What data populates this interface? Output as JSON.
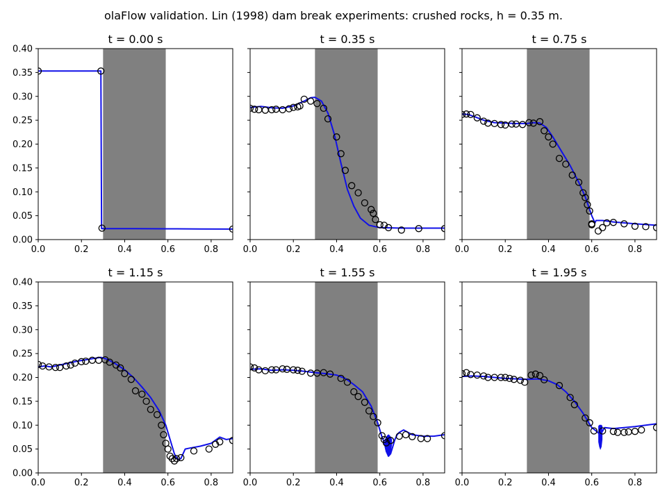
{
  "figure": {
    "suptitle": "olaFlow validation. Lin (1998) dam break experiments: crushed rocks, h = 0.35 m."
  },
  "colors": {
    "model_line": "#1010e8",
    "experiment_marker": "#000000",
    "porous_region": "#808080"
  },
  "chart_data": [
    {
      "type": "line",
      "title": "t = 0.00 s",
      "xlim": [
        0,
        0.9
      ],
      "ylim": [
        0,
        0.4
      ],
      "xticks": [
        "0.0",
        "0.2",
        "0.4",
        "0.6",
        "0.8"
      ],
      "yticks": [
        "0.00",
        "0.05",
        "0.10",
        "0.15",
        "0.20",
        "0.25",
        "0.30",
        "0.35",
        "0.40"
      ],
      "show_yticklabels": true,
      "shaded_region": [
        0.3,
        0.59
      ],
      "series": [
        {
          "kind": "line",
          "role": "model",
          "x": [
            0.0,
            0.29,
            0.293,
            0.3,
            0.45,
            0.6,
            0.75,
            0.9
          ],
          "y": [
            0.353,
            0.353,
            0.023,
            0.023,
            0.0228,
            0.0225,
            0.0222,
            0.022
          ]
        },
        {
          "kind": "scatter",
          "role": "experiment",
          "x": [
            0.0,
            0.29,
            0.295,
            0.9
          ],
          "y": [
            0.353,
            0.353,
            0.024,
            0.022
          ]
        }
      ]
    },
    {
      "type": "line",
      "title": "t = 0.35 s",
      "xlim": [
        0,
        0.9
      ],
      "ylim": [
        0,
        0.4
      ],
      "xticks": [
        "0.0",
        "0.2",
        "0.4",
        "0.6",
        "0.8"
      ],
      "yticks": [
        "0.00",
        "0.05",
        "0.10",
        "0.15",
        "0.20",
        "0.25",
        "0.30",
        "0.35",
        "0.40"
      ],
      "show_yticklabels": false,
      "shaded_region": [
        0.3,
        0.59
      ],
      "series": [
        {
          "kind": "line",
          "role": "model",
          "x": [
            0.0,
            0.05,
            0.1,
            0.15,
            0.2,
            0.25,
            0.28,
            0.3,
            0.33,
            0.36,
            0.39,
            0.42,
            0.45,
            0.48,
            0.51,
            0.55,
            0.6,
            0.7,
            0.8,
            0.9
          ],
          "y": [
            0.277,
            0.279,
            0.276,
            0.275,
            0.28,
            0.29,
            0.297,
            0.298,
            0.29,
            0.265,
            0.22,
            0.16,
            0.105,
            0.07,
            0.045,
            0.03,
            0.025,
            0.024,
            0.024,
            0.024
          ]
        },
        {
          "kind": "scatter",
          "role": "experiment",
          "x": [
            0.0,
            0.02,
            0.04,
            0.07,
            0.1,
            0.12,
            0.15,
            0.18,
            0.2,
            0.22,
            0.23,
            0.25,
            0.28,
            0.31,
            0.34,
            0.36,
            0.4,
            0.42,
            0.44,
            0.47,
            0.5,
            0.53,
            0.56,
            0.57,
            0.58,
            0.6,
            0.62,
            0.64,
            0.7,
            0.78,
            0.9
          ],
          "y": [
            0.275,
            0.273,
            0.272,
            0.271,
            0.272,
            0.273,
            0.272,
            0.274,
            0.277,
            0.278,
            0.28,
            0.294,
            0.29,
            0.285,
            0.275,
            0.253,
            0.215,
            0.18,
            0.145,
            0.113,
            0.098,
            0.077,
            0.063,
            0.055,
            0.042,
            0.031,
            0.03,
            0.025,
            0.02,
            0.023,
            0.023
          ]
        }
      ]
    },
    {
      "type": "line",
      "title": "t = 0.75 s",
      "xlim": [
        0,
        0.9
      ],
      "ylim": [
        0,
        0.4
      ],
      "xticks": [
        "0.0",
        "0.2",
        "0.4",
        "0.6",
        "0.8"
      ],
      "yticks": [
        "0.00",
        "0.05",
        "0.10",
        "0.15",
        "0.20",
        "0.25",
        "0.30",
        "0.35",
        "0.40"
      ],
      "show_yticklabels": false,
      "shaded_region": [
        0.3,
        0.59
      ],
      "series": [
        {
          "kind": "line",
          "role": "model",
          "x": [
            0.0,
            0.03,
            0.06,
            0.1,
            0.15,
            0.2,
            0.25,
            0.3,
            0.33,
            0.36,
            0.39,
            0.42,
            0.46,
            0.5,
            0.54,
            0.57,
            0.6,
            0.61,
            0.615,
            0.62,
            0.65,
            0.7,
            0.8,
            0.9
          ],
          "y": [
            0.263,
            0.262,
            0.257,
            0.25,
            0.245,
            0.244,
            0.243,
            0.243,
            0.245,
            0.244,
            0.235,
            0.215,
            0.185,
            0.155,
            0.12,
            0.09,
            0.05,
            0.04,
            0.035,
            0.04,
            0.04,
            0.037,
            0.033,
            0.03
          ]
        },
        {
          "kind": "scatter",
          "role": "experiment",
          "x": [
            0.0,
            0.02,
            0.04,
            0.07,
            0.1,
            0.12,
            0.15,
            0.18,
            0.2,
            0.23,
            0.25,
            0.28,
            0.31,
            0.33,
            0.36,
            0.38,
            0.4,
            0.42,
            0.45,
            0.48,
            0.51,
            0.54,
            0.56,
            0.57,
            0.58,
            0.59,
            0.6,
            0.6,
            0.63,
            0.65,
            0.67,
            0.7,
            0.75,
            0.8,
            0.85,
            0.9
          ],
          "y": [
            0.262,
            0.263,
            0.262,
            0.255,
            0.248,
            0.244,
            0.243,
            0.241,
            0.24,
            0.242,
            0.242,
            0.241,
            0.245,
            0.244,
            0.247,
            0.228,
            0.215,
            0.2,
            0.17,
            0.158,
            0.135,
            0.12,
            0.098,
            0.088,
            0.073,
            0.06,
            0.033,
            0.031,
            0.018,
            0.025,
            0.035,
            0.036,
            0.033,
            0.028,
            0.027,
            0.025
          ]
        }
      ]
    },
    {
      "type": "line",
      "title": "t = 1.15 s",
      "xlim": [
        0,
        0.9
      ],
      "ylim": [
        0,
        0.4
      ],
      "xticks": [
        "0.0",
        "0.2",
        "0.4",
        "0.6",
        "0.8"
      ],
      "yticks": [
        "0.00",
        "0.05",
        "0.10",
        "0.15",
        "0.20",
        "0.25",
        "0.30",
        "0.35",
        "0.40"
      ],
      "show_yticklabels": true,
      "shaded_region": [
        0.3,
        0.59
      ],
      "series": [
        {
          "kind": "line",
          "role": "model",
          "x": [
            0.0,
            0.03,
            0.06,
            0.1,
            0.14,
            0.18,
            0.22,
            0.26,
            0.29,
            0.32,
            0.36,
            0.4,
            0.44,
            0.48,
            0.52,
            0.56,
            0.59,
            0.61,
            0.63,
            0.645,
            0.66,
            0.68,
            0.7,
            0.75,
            0.8,
            0.84,
            0.87,
            0.9
          ],
          "y": [
            0.222,
            0.224,
            0.222,
            0.226,
            0.23,
            0.234,
            0.237,
            0.24,
            0.242,
            0.238,
            0.228,
            0.216,
            0.2,
            0.18,
            0.158,
            0.13,
            0.1,
            0.07,
            0.04,
            0.028,
            0.03,
            0.05,
            0.052,
            0.056,
            0.062,
            0.075,
            0.07,
            0.072
          ]
        },
        {
          "kind": "scatter",
          "role": "experiment",
          "x": [
            0.0,
            0.02,
            0.05,
            0.08,
            0.1,
            0.13,
            0.15,
            0.17,
            0.2,
            0.22,
            0.25,
            0.28,
            0.31,
            0.33,
            0.36,
            0.38,
            0.4,
            0.43,
            0.45,
            0.48,
            0.5,
            0.52,
            0.55,
            0.57,
            0.58,
            0.59,
            0.6,
            0.61,
            0.62,
            0.63,
            0.64,
            0.66,
            0.72,
            0.79,
            0.82,
            0.84,
            0.9
          ],
          "y": [
            0.227,
            0.224,
            0.222,
            0.221,
            0.221,
            0.224,
            0.226,
            0.23,
            0.233,
            0.234,
            0.236,
            0.236,
            0.237,
            0.232,
            0.226,
            0.22,
            0.208,
            0.196,
            0.172,
            0.165,
            0.15,
            0.133,
            0.122,
            0.1,
            0.08,
            0.062,
            0.05,
            0.035,
            0.03,
            0.025,
            0.03,
            0.032,
            0.046,
            0.05,
            0.06,
            0.065,
            0.068
          ]
        }
      ]
    },
    {
      "type": "line",
      "title": "t = 1.55 s",
      "xlim": [
        0,
        0.9
      ],
      "ylim": [
        0,
        0.4
      ],
      "xticks": [
        "0.0",
        "0.2",
        "0.4",
        "0.6",
        "0.8"
      ],
      "yticks": [
        "0.00",
        "0.05",
        "0.10",
        "0.15",
        "0.20",
        "0.25",
        "0.30",
        "0.35",
        "0.40"
      ],
      "show_yticklabels": false,
      "shaded_region": [
        0.3,
        0.59
      ],
      "series": [
        {
          "kind": "line",
          "role": "model",
          "x": [
            0.0,
            0.05,
            0.1,
            0.15,
            0.2,
            0.25,
            0.3,
            0.35,
            0.4,
            0.44,
            0.48,
            0.52,
            0.56,
            0.59,
            0.61,
            0.62,
            0.63,
            0.64,
            0.65,
            0.66,
            0.67,
            0.68,
            0.69,
            0.71,
            0.75,
            0.8,
            0.85,
            0.9
          ],
          "y": [
            0.217,
            0.218,
            0.215,
            0.216,
            0.215,
            0.213,
            0.21,
            0.208,
            0.205,
            0.198,
            0.185,
            0.17,
            0.14,
            0.105,
            0.075,
            0.065,
            0.045,
            0.035,
            0.04,
            0.055,
            0.07,
            0.08,
            0.085,
            0.09,
            0.08,
            0.077,
            0.077,
            0.08
          ]
        },
        {
          "kind": "band",
          "role": "model-oscillation",
          "x": [
            0.625,
            0.63,
            0.635,
            0.64,
            0.645,
            0.65,
            0.655
          ],
          "ymin": [
            0.055,
            0.045,
            0.04,
            0.038,
            0.04,
            0.045,
            0.06
          ],
          "ymax": [
            0.07,
            0.075,
            0.078,
            0.08,
            0.078,
            0.075,
            0.07
          ]
        },
        {
          "kind": "scatter",
          "role": "experiment",
          "x": [
            0.0,
            0.02,
            0.04,
            0.07,
            0.1,
            0.12,
            0.15,
            0.17,
            0.2,
            0.22,
            0.24,
            0.28,
            0.31,
            0.34,
            0.37,
            0.42,
            0.45,
            0.48,
            0.5,
            0.53,
            0.55,
            0.57,
            0.59,
            0.61,
            0.62,
            0.63,
            0.65,
            0.69,
            0.72,
            0.75,
            0.79,
            0.82,
            0.9
          ],
          "y": [
            0.222,
            0.22,
            0.216,
            0.214,
            0.216,
            0.216,
            0.218,
            0.217,
            0.216,
            0.215,
            0.213,
            0.209,
            0.209,
            0.21,
            0.207,
            0.198,
            0.19,
            0.17,
            0.16,
            0.148,
            0.13,
            0.118,
            0.105,
            0.078,
            0.07,
            0.063,
            0.068,
            0.077,
            0.08,
            0.076,
            0.072,
            0.072,
            0.078
          ]
        }
      ]
    },
    {
      "type": "line",
      "title": "t = 1.95 s",
      "xlim": [
        0,
        0.9
      ],
      "ylim": [
        0,
        0.4
      ],
      "xticks": [
        "0.0",
        "0.2",
        "0.4",
        "0.6",
        "0.8"
      ],
      "yticks": [
        "0.00",
        "0.05",
        "0.10",
        "0.15",
        "0.20",
        "0.25",
        "0.30",
        "0.35",
        "0.40"
      ],
      "show_yticklabels": false,
      "shaded_region": [
        0.3,
        0.59
      ],
      "series": [
        {
          "kind": "line",
          "role": "model",
          "x": [
            0.0,
            0.05,
            0.1,
            0.15,
            0.2,
            0.25,
            0.3,
            0.35,
            0.4,
            0.44,
            0.48,
            0.52,
            0.56,
            0.58,
            0.6,
            0.62,
            0.64,
            0.66,
            0.7,
            0.75,
            0.8,
            0.85,
            0.9
          ],
          "y": [
            0.202,
            0.203,
            0.202,
            0.2,
            0.198,
            0.197,
            0.196,
            0.197,
            0.193,
            0.185,
            0.17,
            0.15,
            0.125,
            0.11,
            0.095,
            0.088,
            0.08,
            0.095,
            0.093,
            0.095,
            0.097,
            0.1,
            0.103
          ]
        },
        {
          "kind": "band",
          "role": "model-oscillation",
          "x": [
            0.632,
            0.636,
            0.64,
            0.644,
            0.648
          ],
          "ymin": [
            0.065,
            0.055,
            0.05,
            0.055,
            0.07
          ],
          "ymax": [
            0.098,
            0.1,
            0.1,
            0.1,
            0.098
          ]
        },
        {
          "kind": "scatter",
          "role": "experiment",
          "x": [
            0.0,
            0.02,
            0.04,
            0.07,
            0.1,
            0.12,
            0.15,
            0.18,
            0.2,
            0.22,
            0.24,
            0.27,
            0.29,
            0.32,
            0.34,
            0.36,
            0.38,
            0.45,
            0.5,
            0.52,
            0.57,
            0.59,
            0.61,
            0.65,
            0.7,
            0.72,
            0.75,
            0.77,
            0.8,
            0.83,
            0.9
          ],
          "y": [
            0.208,
            0.21,
            0.206,
            0.205,
            0.203,
            0.2,
            0.2,
            0.2,
            0.2,
            0.198,
            0.196,
            0.194,
            0.19,
            0.205,
            0.207,
            0.204,
            0.195,
            0.183,
            0.158,
            0.143,
            0.115,
            0.105,
            0.088,
            0.088,
            0.087,
            0.085,
            0.085,
            0.086,
            0.087,
            0.09,
            0.095
          ]
        }
      ]
    }
  ]
}
